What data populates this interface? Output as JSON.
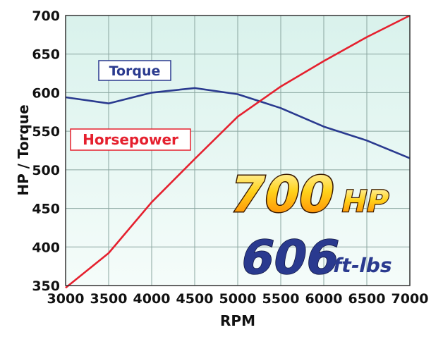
{
  "chart_data": {
    "type": "line",
    "xlabel": "RPM",
    "ylabel": "HP / Torque",
    "xlim": [
      3000,
      7000
    ],
    "ylim": [
      350,
      700
    ],
    "grid": true,
    "x": [
      3000,
      3500,
      4000,
      4500,
      5000,
      5500,
      6000,
      6500,
      7000
    ],
    "x_ticks": [
      "3000",
      "3500",
      "4000",
      "4500",
      "5000",
      "5500",
      "6000",
      "6500",
      "7000"
    ],
    "y_ticks": [
      "350",
      "400",
      "450",
      "500",
      "550",
      "600",
      "650",
      "700"
    ],
    "y_tick_values": [
      350,
      400,
      450,
      500,
      550,
      600,
      650,
      700
    ],
    "series": [
      {
        "name": "Torque",
        "color": "#2a3a8f",
        "values": [
          594,
          586,
          600,
          606,
          598,
          580,
          556,
          538,
          515
        ]
      },
      {
        "name": "Horsepower",
        "color": "#e5202e",
        "values": [
          347,
          392,
          458,
          514,
          569,
          608,
          641,
          672,
          700
        ]
      }
    ],
    "headline": {
      "hp_value": "700",
      "hp_unit": "HP",
      "tq_value": "606",
      "tq_unit": "ft-lbs"
    }
  }
}
